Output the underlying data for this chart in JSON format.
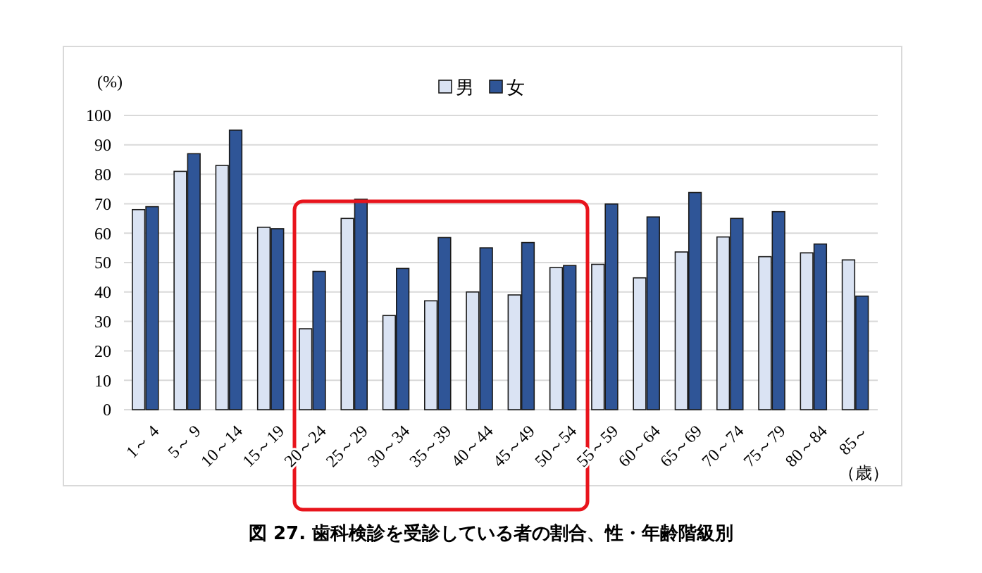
{
  "chart_data": {
    "type": "bar",
    "title": "図 27. 歯科検診を受診している者の割合、性・年齢階級別",
    "ylabel": "(%)",
    "xlabel": "（歳）",
    "categories": [
      "1～ 4",
      "5～ 9",
      "10～14",
      "15～19",
      "20～24",
      "25～29",
      "30～34",
      "35～39",
      "40～44",
      "45～49",
      "50～54",
      "55～59",
      "60～64",
      "65～69",
      "70～74",
      "75～79",
      "80～84",
      "85～"
    ],
    "series": [
      {
        "name": "男",
        "color": "#dae3f3",
        "values": [
          68,
          81,
          83,
          62,
          27.5,
          65,
          32,
          37,
          40,
          39,
          48.3,
          49.4,
          44.8,
          53.6,
          58.7,
          52,
          53.3,
          50.9
        ]
      },
      {
        "name": "女",
        "color": "#2f5597",
        "values": [
          69,
          87,
          95,
          61.5,
          47,
          71.5,
          48,
          58.5,
          55,
          56.8,
          49,
          69.9,
          65.5,
          73.8,
          65,
          67.3,
          56.3,
          38.6
        ]
      }
    ],
    "ylim": [
      0,
      100
    ],
    "yticks": [
      0,
      10,
      20,
      30,
      40,
      50,
      60,
      70,
      80,
      90,
      100
    ],
    "grid": "y",
    "legend": "top"
  }
}
